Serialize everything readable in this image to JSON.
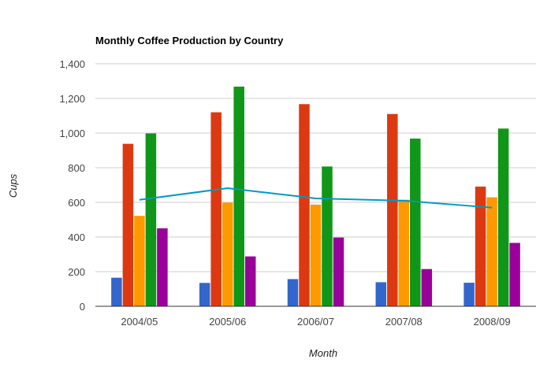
{
  "chart_data": {
    "type": "bar",
    "title": "Monthly Coffee Production by Country",
    "xlabel": "Month",
    "ylabel": "Cups",
    "categories": [
      "2004/05",
      "2005/06",
      "2006/07",
      "2007/08",
      "2008/09"
    ],
    "ylim": [
      0,
      1400
    ],
    "yticks": [
      "0",
      "200",
      "400",
      "600",
      "800",
      "1,000",
      "1,200",
      "1,400"
    ],
    "ytick_values": [
      0,
      200,
      400,
      600,
      800,
      1000,
      1200,
      1400
    ],
    "grid": true,
    "legend": "none",
    "series": [
      {
        "values": [
          165,
          135,
          157,
          139,
          136
        ],
        "color": "#3366cc"
      },
      {
        "values": [
          938,
          1120,
          1167,
          1110,
          691
        ],
        "color": "#dc3912"
      },
      {
        "values": [
          522,
          599,
          587,
          615,
          629
        ],
        "color": "#ff9900"
      },
      {
        "values": [
          998,
          1268,
          807,
          968,
          1026
        ],
        "color": "#109618"
      },
      {
        "values": [
          450,
          288,
          397,
          215,
          366
        ],
        "color": "#990099"
      }
    ],
    "line_series": {
      "type": "line",
      "values": [
        614.6,
        682,
        623,
        609.4,
        569.6
      ],
      "color": "#0099c6"
    }
  }
}
